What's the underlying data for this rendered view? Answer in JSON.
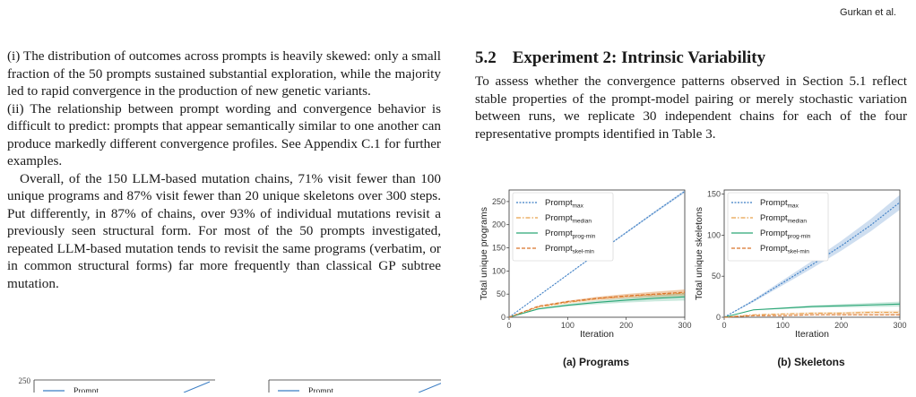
{
  "header": {
    "running_head": "Gurkan et al."
  },
  "left_column": {
    "para1": "(i) The distribution of outcomes across prompts is heavily skewed: only a small fraction of the 50 prompts sustained substantial exploration, while the majority led to rapid convergence in the production of new genetic variants.",
    "para2": "(ii) The relationship between prompt wording and convergence behavior is difficult to predict: prompts that appear semantically similar to one another can produce markedly different convergence profiles. See Appendix C.1 for further examples.",
    "para3": "Overall, of the 150 LLM-based mutation chains, 71% visit fewer than 100 unique programs and 87% visit fewer than 20 unique skeletons over 300 steps. Put differently, in 87% of chains, over 93% of individual mutations revisit a previously seen structural form. For most of the 50 prompts investigated, repeated LLM-based mutation tends to revisit the same programs (verbatim, or in common structural forms) far more frequently than classical GP subtree mutation."
  },
  "section": {
    "number": "5.2",
    "title": "Experiment 2: Intrinsic Variability",
    "body": "To assess whether the convergence patterns observed in Section 5.1 reflect stable properties of the prompt-model pairing or merely stochastic variation between runs, we replicate 30 independent chains for each of the four representative prompts identified in Table 3."
  },
  "figure": {
    "caption_a": "(a) Programs",
    "caption_b": "(b) Skeletons",
    "legend": [
      {
        "base": "Prompt",
        "sub": "max"
      },
      {
        "base": "Prompt",
        "sub": "median"
      },
      {
        "base": "Prompt",
        "sub": "prog-min"
      },
      {
        "base": "Prompt",
        "sub": "skel-min"
      }
    ]
  },
  "colors": {
    "max": "#3b7dc4",
    "median": "#e8a04a",
    "prog_min": "#2aa676",
    "skel_min": "#d9732a"
  },
  "chart_data": [
    {
      "type": "line",
      "xlabel": "Iteration",
      "ylabel": "Total unique programs",
      "xlim": [
        0,
        300
      ],
      "ylim": [
        0,
        275
      ],
      "xticks": [
        0,
        100,
        200,
        300
      ],
      "yticks": [
        0,
        50,
        100,
        150,
        200,
        250
      ],
      "x": [
        0,
        50,
        100,
        150,
        200,
        250,
        300
      ],
      "legend_position": "top-left",
      "series": [
        {
          "name": "Prompt max",
          "key": "max",
          "values": [
            0,
            46,
            92,
            138,
            183,
            228,
            272
          ],
          "band": 3
        },
        {
          "name": "Prompt median",
          "key": "median",
          "values": [
            0,
            22,
            32,
            40,
            45,
            49,
            52
          ],
          "band": 8
        },
        {
          "name": "Prompt prog-min",
          "key": "prog_min",
          "values": [
            0,
            18,
            26,
            32,
            37,
            41,
            44
          ],
          "band": 8
        },
        {
          "name": "Prompt skel-min",
          "key": "skel_min",
          "values": [
            0,
            24,
            34,
            41,
            46,
            50,
            54
          ],
          "band": 6
        }
      ]
    },
    {
      "type": "line",
      "xlabel": "Iteration",
      "ylabel": "Total unique skeletons",
      "xlim": [
        0,
        300
      ],
      "ylim": [
        0,
        155
      ],
      "xticks": [
        0,
        100,
        200,
        300
      ],
      "yticks": [
        0,
        50,
        100,
        150
      ],
      "x": [
        0,
        50,
        100,
        150,
        200,
        250,
        300
      ],
      "legend_position": "top-left",
      "series": [
        {
          "name": "Prompt max",
          "key": "max",
          "values": [
            0,
            20,
            42,
            64,
            87,
            112,
            140
          ],
          "band": 9
        },
        {
          "name": "Prompt median",
          "key": "median",
          "values": [
            0,
            3,
            4,
            5,
            5,
            6,
            6
          ],
          "band": 2
        },
        {
          "name": "Prompt prog-min",
          "key": "prog_min",
          "values": [
            0,
            9,
            11,
            13,
            14,
            15,
            16
          ],
          "band": 3
        },
        {
          "name": "Prompt skel-min",
          "key": "skel_min",
          "values": [
            0,
            2,
            2,
            3,
            3,
            3,
            3
          ],
          "band": 1
        }
      ]
    },
    {
      "type": "line",
      "partial": true,
      "yticks": [
        250
      ],
      "legend": [
        {
          "base": "Prompt",
          "sub": "max"
        }
      ]
    },
    {
      "type": "line",
      "partial": true,
      "legend": [
        {
          "base": "Prompt",
          "sub": "max"
        }
      ]
    }
  ]
}
